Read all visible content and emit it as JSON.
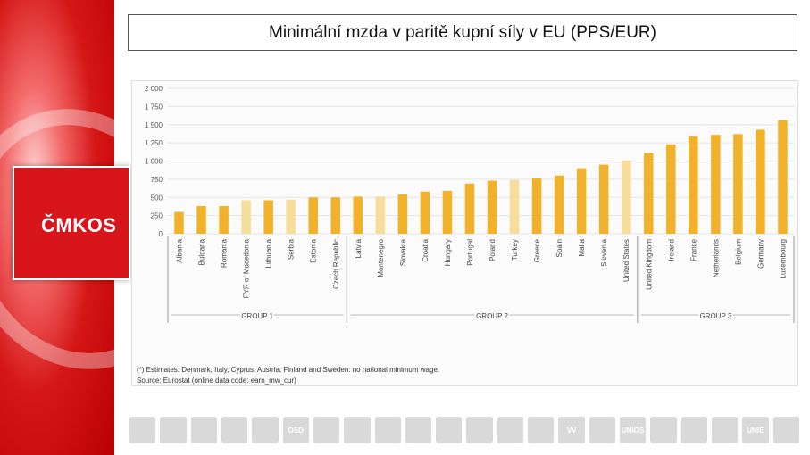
{
  "title": "Minimální mzda v paritě kupní síly v EU (PPS/EUR)",
  "logo_text": "ČMKOS",
  "colors": {
    "bar": "#f2b12a",
    "estimate": "#f7dd9c",
    "brand": "#d9151c"
  },
  "chart_data": {
    "type": "bar",
    "title": "",
    "ylim": [
      0,
      2000
    ],
    "yticks": [
      "0",
      "250",
      "500",
      "750",
      "1 000",
      "1 250",
      "1 500",
      "1 750",
      "2 000"
    ],
    "ytick_values": [
      0,
      250,
      500,
      750,
      1000,
      1250,
      1500,
      1750,
      2000
    ],
    "categories": [
      "Albania",
      "Bulgaria",
      "Romania",
      "FYR of Macedonia",
      "Lithuania",
      "Serbia",
      "Estonia",
      "Czech Republic",
      "Latvia",
      "Montenegro",
      "Slovakia",
      "Croatia",
      "Hungary",
      "Portugal",
      "Poland",
      "Turkey",
      "Greece",
      "Spain",
      "Malta",
      "Slovenia",
      "United States",
      "United Kingdom",
      "Ireland",
      "France",
      "Netherlands",
      "Belgium",
      "Germany",
      "Luxembourg"
    ],
    "values": [
      300,
      380,
      380,
      460,
      460,
      470,
      500,
      500,
      510,
      510,
      540,
      580,
      590,
      690,
      730,
      740,
      760,
      800,
      900,
      950,
      1010,
      1110,
      1230,
      1340,
      1360,
      1370,
      1430,
      1560
    ],
    "estimated": [
      false,
      false,
      false,
      true,
      false,
      true,
      false,
      false,
      false,
      true,
      false,
      false,
      false,
      false,
      false,
      true,
      false,
      false,
      false,
      false,
      true,
      false,
      false,
      false,
      false,
      false,
      false,
      false
    ],
    "groups": [
      {
        "label": "GROUP 1",
        "start": 0,
        "end": 8
      },
      {
        "label": "GROUP 2",
        "start": 8,
        "end": 21
      },
      {
        "label": "GROUP 3",
        "start": 21,
        "end": 28
      }
    ],
    "footnote": "(*) Estimates. Denmark, Italy, Cyprus, Austria, Finland and Sweden: no national minimum wage.",
    "source": "Source: Eurostat (online data code: earn_mw_cur)"
  },
  "partners": [
    "",
    "",
    "",
    "",
    "",
    "OSD",
    "",
    "",
    "",
    "",
    "",
    "",
    "",
    "",
    "VV",
    "",
    "UNIOS",
    "",
    "",
    "",
    "UNIE",
    ""
  ]
}
